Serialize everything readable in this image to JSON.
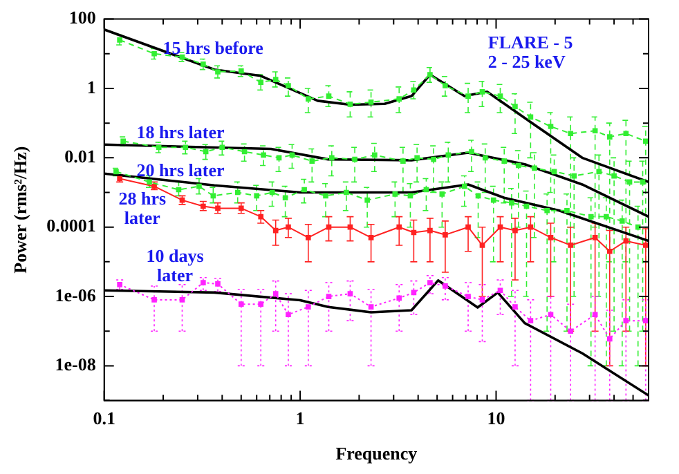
{
  "chart_data": {
    "type": "line",
    "xlabel": "Frequency",
    "ylabel": "Power (rms²/Hz)",
    "log": "xy",
    "grid": false,
    "legend": false,
    "xlim": [
      0.1,
      60
    ],
    "ylim": [
      1e-09,
      100
    ],
    "xticks": [
      0.1,
      {
        "value": 0.2,
        "label": null
      },
      {
        "value": 0.3,
        "label": null
      },
      {
        "value": 0.4,
        "label": null
      },
      {
        "value": 0.5,
        "label": null
      },
      {
        "value": 0.6,
        "label": null
      },
      {
        "value": 0.7,
        "label": null
      },
      {
        "value": 0.8,
        "label": null
      },
      {
        "value": 0.9,
        "label": null
      },
      1,
      {
        "value": 2,
        "label": null
      },
      {
        "value": 3,
        "label": null
      },
      {
        "value": 4,
        "label": null
      },
      {
        "value": 5,
        "label": null
      },
      {
        "value": 6,
        "label": null
      },
      {
        "value": 7,
        "label": null
      },
      {
        "value": 8,
        "label": null
      },
      {
        "value": 9,
        "label": null
      },
      10,
      {
        "value": 20,
        "label": null
      },
      {
        "value": 30,
        "label": null
      },
      {
        "value": 40,
        "label": null
      },
      {
        "value": 50,
        "label": null
      }
    ],
    "yticks": [
      {
        "value": 1e-09,
        "label": null
      },
      {
        "value": 1e-08,
        "label": "1e-08"
      },
      {
        "value": 1e-07,
        "label": null
      },
      {
        "value": 1e-06,
        "label": "1e-06"
      },
      {
        "value": 1e-05,
        "label": null
      },
      0.0001,
      {
        "value": 0.001,
        "label": null
      },
      0.01,
      {
        "value": 0.1,
        "label": null
      },
      1,
      {
        "value": 10,
        "label": null
      },
      100
    ],
    "x": [
      0.12,
      0.18,
      0.25,
      0.32,
      0.38,
      0.5,
      0.63,
      0.75,
      0.87,
      1.1,
      1.4,
      1.8,
      2.3,
      3.2,
      3.8,
      4.6,
      5.5,
      7.2,
      8.5,
      10.5,
      12.5,
      15,
      19,
      24,
      32,
      38,
      46,
      58
    ],
    "annotations": [
      "15 hrs before",
      "18 hrs later",
      "20 hrs later",
      "28 hrs\nlater",
      "10 days\nlater",
      "FLARE - 5\n2 - 25 keV"
    ],
    "series": [
      {
        "type": "line",
        "color": "#33ee33",
        "marker": "square",
        "line_style": "dashed",
        "values": [
          25,
          10,
          8,
          5,
          3,
          3.2,
          1.5,
          1.8,
          1.2,
          0.5,
          0.6,
          0.35,
          0.4,
          0.5,
          0.9,
          2.5,
          1.2,
          0.6,
          0.8,
          0.6,
          0.3,
          0.15,
          0.08,
          0.05,
          0.06,
          0.04,
          0.05,
          0.03
        ],
        "errors": [
          [
            18,
            35
          ],
          [
            7,
            14
          ],
          [
            6,
            11
          ],
          [
            3.5,
            7
          ],
          [
            2,
            4.5
          ],
          [
            2.2,
            4.5
          ],
          [
            0.9,
            2.5
          ],
          [
            1.1,
            3
          ],
          [
            0.6,
            2
          ],
          [
            0.2,
            1
          ],
          [
            0.3,
            1.2
          ],
          [
            0.15,
            0.8
          ],
          [
            0.15,
            0.9
          ],
          [
            0.2,
            1.1
          ],
          [
            0.5,
            1.6
          ],
          [
            1.5,
            4
          ],
          [
            0.6,
            2.2
          ],
          [
            0.2,
            1.4
          ],
          [
            0.3,
            1.6
          ],
          [
            0.2,
            1.3
          ],
          [
            0.05,
            0.7
          ],
          [
            0.01,
            0.4
          ],
          [
            0.001,
            0.2
          ],
          [
            0.0001,
            0.15
          ],
          [
            0.0001,
            0.15
          ],
          [
            1e-05,
            0.1
          ],
          [
            1e-05,
            0.12
          ],
          [
            1e-05,
            0.08
          ]
        ]
      },
      {
        "type": "line",
        "color": "#33ee33",
        "marker": "square",
        "line_style": "dashed",
        "x": [
          0.125,
          0.19,
          0.26,
          0.33,
          0.4,
          0.52,
          0.65,
          0.78,
          0.91,
          1.15,
          1.45,
          1.9,
          2.4,
          3.35,
          3.95,
          4.8,
          5.7,
          7.5,
          8.8,
          11,
          13,
          15.7,
          19.8,
          25,
          33.5,
          40,
          48,
          56
        ],
        "values": [
          0.03,
          0.02,
          0.02,
          0.015,
          0.02,
          0.015,
          0.012,
          0.01,
          0.012,
          0.008,
          0.01,
          0.009,
          0.012,
          0.008,
          0.01,
          0.009,
          0.012,
          0.015,
          0.01,
          0.008,
          0.006,
          0.005,
          0.004,
          0.003,
          0.004,
          0.003,
          0.002,
          0.002
        ],
        "errors": [
          [
            0.022,
            0.04
          ],
          [
            0.014,
            0.028
          ],
          [
            0.013,
            0.03
          ],
          [
            0.009,
            0.024
          ],
          [
            0.012,
            0.03
          ],
          [
            0.008,
            0.025
          ],
          [
            0.006,
            0.022
          ],
          [
            0.004,
            0.02
          ],
          [
            0.005,
            0.024
          ],
          [
            0.002,
            0.018
          ],
          [
            0.003,
            0.022
          ],
          [
            0.002,
            0.02
          ],
          [
            0.004,
            0.026
          ],
          [
            0.001,
            0.02
          ],
          [
            0.002,
            0.024
          ],
          [
            0.001,
            0.022
          ],
          [
            0.002,
            0.028
          ],
          [
            0.004,
            0.032
          ],
          [
            0.001,
            0.025
          ],
          [
            0.0005,
            0.02
          ],
          [
            0.0001,
            0.016
          ],
          [
            5e-05,
            0.014
          ],
          [
            1e-05,
            0.012
          ],
          [
            1e-06,
            0.01
          ],
          [
            1e-06,
            0.012
          ],
          [
            1e-07,
            0.01
          ],
          [
            1e-07,
            0.008
          ],
          [
            1e-07,
            0.008
          ]
        ]
      },
      {
        "type": "line",
        "color": "#33ee33",
        "marker": "square",
        "line_style": "dashed",
        "x": [
          0.115,
          0.17,
          0.24,
          0.305,
          0.36,
          0.48,
          0.6,
          0.72,
          0.84,
          1.05,
          1.35,
          1.72,
          2.2,
          3.05,
          3.65,
          4.4,
          5.3,
          6.9,
          8.1,
          9.7,
          12,
          14.3,
          18.2,
          23,
          30.5,
          36.5,
          44,
          53
        ],
        "values": [
          0.004,
          0.002,
          0.0012,
          0.0015,
          0.0008,
          0.001,
          0.0008,
          0.001,
          0.0007,
          0.0012,
          0.0008,
          0.001,
          0.0006,
          0.0009,
          0.0008,
          0.0012,
          0.0009,
          0.0015,
          0.0008,
          0.0006,
          0.0005,
          0.0004,
          0.0003,
          0.0003,
          0.0002,
          0.0002,
          0.00015,
          0.0001
        ],
        "errors": [
          [
            0.003,
            0.005
          ],
          [
            0.0014,
            0.003
          ],
          [
            0.0008,
            0.002
          ],
          [
            0.0009,
            0.0025
          ],
          [
            0.0005,
            0.0014
          ],
          [
            0.0005,
            0.002
          ],
          [
            0.0003,
            0.0016
          ],
          [
            0.0004,
            0.002
          ],
          [
            0.0002,
            0.0015
          ],
          [
            0.0005,
            0.0024
          ],
          [
            0.0002,
            0.0018
          ],
          [
            0.0003,
            0.002
          ],
          [
            0.0001,
            0.0014
          ],
          [
            0.0002,
            0.002
          ],
          [
            0.0001,
            0.0018
          ],
          [
            0.0003,
            0.0025
          ],
          [
            0.0001,
            0.002
          ],
          [
            0.0004,
            0.003
          ],
          [
            5e-05,
            0.002
          ],
          [
            1e-05,
            0.0015
          ],
          [
            1e-06,
            0.0013
          ],
          [
            1e-06,
            0.0011
          ],
          [
            1e-07,
            0.0009
          ],
          [
            1e-07,
            0.0009
          ],
          [
            1e-08,
            0.0007
          ],
          [
            1e-08,
            0.0007
          ],
          [
            1e-08,
            0.0006
          ],
          [
            1e-08,
            0.0004
          ]
        ]
      },
      {
        "type": "line",
        "color": "#ff2222",
        "marker": "square",
        "line_style": "solid",
        "values": [
          0.0025,
          0.0015,
          0.0006,
          0.0004,
          0.00035,
          0.00035,
          0.0002,
          8e-05,
          0.0001,
          5e-05,
          0.0001,
          0.0001,
          5e-05,
          0.0001,
          7e-05,
          8e-05,
          6e-05,
          0.0001,
          3e-05,
          0.0001,
          8e-05,
          0.0001,
          5e-05,
          3e-05,
          5e-05,
          2e-05,
          4e-05,
          3e-05
        ],
        "errors": [
          [
            0.002,
            0.0032
          ],
          [
            0.0012,
            0.002
          ],
          [
            0.00045,
            0.0008
          ],
          [
            0.0003,
            0.00055
          ],
          [
            0.00025,
            0.0005
          ],
          [
            0.00025,
            0.0005
          ],
          [
            0.00013,
            0.0003
          ],
          [
            3e-05,
            0.00016
          ],
          [
            5e-05,
            0.00018
          ],
          [
            1e-05,
            0.00012
          ],
          [
            4e-05,
            0.0002
          ],
          [
            4e-05,
            0.0002
          ],
          [
            1e-05,
            0.00012
          ],
          [
            3e-05,
            0.0002
          ],
          [
            1e-05,
            0.00016
          ],
          [
            1e-05,
            0.00018
          ],
          [
            5e-06,
            0.00015
          ],
          [
            2e-05,
            0.0002
          ],
          [
            1e-06,
            0.0001
          ],
          [
            1e-05,
            0.0002
          ],
          [
            3e-06,
            0.00018
          ],
          [
            1e-05,
            0.0002
          ],
          [
            1e-06,
            0.00013
          ],
          [
            1e-07,
            0.0001
          ],
          [
            1e-07,
            0.00013
          ],
          [
            1e-08,
            8e-05
          ],
          [
            1e-07,
            0.0001
          ],
          [
            1e-08,
            9e-05
          ]
        ]
      },
      {
        "type": "line",
        "color": "#ff22ff",
        "marker": "square",
        "line_style": "dotted",
        "values": [
          2.2e-06,
          8e-07,
          8e-07,
          2.5e-06,
          2.3e-06,
          6e-07,
          6e-07,
          1.2e-06,
          3e-07,
          5e-07,
          1e-06,
          1.2e-06,
          5e-07,
          9e-07,
          1.3e-06,
          2.5e-06,
          2e-06,
          1e-06,
          8e-07,
          1.5e-06,
          5e-07,
          2e-07,
          3e-07,
          1e-07,
          3e-07,
          6e-08,
          2e-07,
          2e-07
        ],
        "errors": [
          [
            1.6e-06,
            3e-06
          ],
          [
            1e-07,
            2e-06
          ],
          [
            1e-07,
            2.2e-06
          ],
          [
            1.5e-06,
            3.5e-06
          ],
          [
            1.4e-06,
            3.3e-06
          ],
          [
            1e-08,
            1.6e-06
          ],
          [
            1e-08,
            1.6e-06
          ],
          [
            1e-07,
            2.8e-06
          ],
          [
            1e-08,
            1.2e-06
          ],
          [
            1e-08,
            1.5e-06
          ],
          [
            1e-07,
            2.5e-06
          ],
          [
            2e-07,
            2.8e-06
          ],
          [
            1e-08,
            1.6e-06
          ],
          [
            1e-07,
            2.2e-06
          ],
          [
            3e-07,
            2.8e-06
          ],
          [
            1.2e-06,
            4e-06
          ],
          [
            8e-07,
            3.5e-06
          ],
          [
            1e-07,
            2.5e-06
          ],
          [
            5e-08,
            2.2e-06
          ],
          [
            3e-07,
            3e-06
          ],
          [
            1e-08,
            1.5e-06
          ],
          [
            1e-09,
            8e-07
          ],
          [
            1e-09,
            1e-06
          ],
          [
            1e-09,
            6e-07
          ],
          [
            1e-09,
            1e-06
          ],
          [
            1e-09,
            4e-07
          ],
          [
            1e-09,
            8e-07
          ],
          [
            1e-09,
            8e-07
          ]
        ]
      },
      {
        "type": "line",
        "color": "#000000",
        "marker": "none",
        "line_style": "solid",
        "x": [
          0.1,
          0.365,
          0.63,
          1.23,
          1.8,
          2.7,
          3.7,
          4.6,
          6.9,
          9,
          14,
          27.5,
          60
        ],
        "values": [
          50,
          3.5,
          2.3,
          0.44,
          0.34,
          0.36,
          0.6,
          2.5,
          0.6,
          0.8,
          0.14,
          0.01,
          0.002
        ]
      },
      {
        "type": "line",
        "color": "#000000",
        "marker": "none",
        "line_style": "solid",
        "x": [
          0.1,
          0.71,
          1.39,
          3.7,
          7.2,
          14,
          27.5,
          60
        ],
        "values": [
          0.024,
          0.018,
          0.009,
          0.0085,
          0.014,
          0.0065,
          0.0017,
          0.0002
        ]
      },
      {
        "type": "line",
        "color": "#000000",
        "marker": "none",
        "line_style": "solid",
        "x": [
          0.1,
          0.365,
          1,
          3.7,
          7.2,
          11,
          21,
          60
        ],
        "values": [
          0.0035,
          0.0016,
          0.001,
          0.001,
          0.0017,
          0.0007,
          0.0003,
          4e-05
        ]
      },
      {
        "type": "line",
        "color": "#000000",
        "marker": "none",
        "line_style": "solid",
        "x": [
          0.1,
          0.365,
          1,
          1.39,
          2.3,
          3.7,
          5.06,
          8.05,
          10.2,
          14,
          27.5,
          60
        ],
        "values": [
          1.5e-06,
          1.3e-06,
          7.8e-07,
          5e-07,
          3.5e-07,
          4e-07,
          2.9e-06,
          4.8e-07,
          1.3e-06,
          1.7e-07,
          2.3e-08,
          1.4e-09
        ]
      }
    ]
  }
}
